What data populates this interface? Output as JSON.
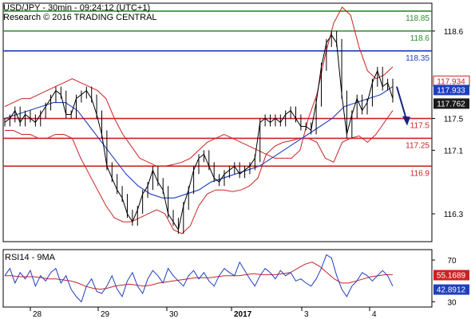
{
  "chart_data": {
    "type": "line",
    "title": "USD/JPY - 30min - 09:24:12 (UTC+1)",
    "subtitle": "Research © 2016 TRADING CENTRAL",
    "x_ticks": [
      "28",
      "29",
      "30",
      "2017",
      "3",
      "4"
    ],
    "y_ticks": [
      116.3,
      117.1,
      117.5,
      118.6
    ],
    "ylim": [
      115.95,
      118.95
    ],
    "price_line": [
      117.45,
      117.5,
      117.6,
      117.45,
      117.55,
      117.5,
      117.45,
      117.55,
      117.65,
      117.75,
      117.85,
      117.8,
      117.55,
      117.55,
      117.75,
      117.8,
      117.85,
      117.75,
      117.55,
      117.3,
      116.9,
      116.75,
      116.6,
      116.5,
      116.3,
      116.2,
      116.35,
      116.55,
      116.65,
      116.85,
      116.7,
      116.6,
      116.3,
      116.2,
      116.1,
      116.4,
      116.6,
      116.85,
      117.0,
      117.05,
      116.9,
      116.75,
      116.7,
      116.8,
      116.85,
      116.9,
      116.8,
      116.85,
      116.9,
      117.0,
      117.45,
      117.5,
      117.45,
      117.5,
      117.45,
      117.55,
      117.6,
      117.5,
      117.4,
      117.4,
      117.35,
      117.7,
      118.15,
      118.45,
      118.55,
      118.45,
      117.8,
      117.3,
      117.55,
      117.75,
      117.6,
      117.7,
      117.95,
      118.1,
      117.9,
      117.95,
      117.75
    ],
    "upper_band": [
      117.65,
      117.7,
      117.75,
      117.75,
      117.8,
      117.85,
      117.9,
      117.95,
      118.0,
      117.95,
      117.9,
      117.85,
      117.75,
      117.5,
      117.3,
      117.15,
      117.0,
      116.95,
      116.9,
      116.9,
      116.92,
      116.95,
      117.0,
      117.1,
      117.2,
      117.25,
      117.3,
      117.25,
      117.2,
      117.15,
      117.1,
      117.05,
      117.0,
      117.0,
      117.0,
      117.1,
      117.5,
      117.8,
      118.3,
      118.7,
      118.9,
      118.8,
      118.4,
      118.1,
      118.0,
      118.05,
      118.15
    ],
    "lower_band": [
      117.35,
      117.35,
      117.3,
      117.3,
      117.25,
      117.25,
      117.3,
      117.3,
      117.25,
      117.0,
      116.8,
      116.6,
      116.4,
      116.25,
      116.2,
      116.2,
      116.25,
      116.3,
      116.35,
      116.3,
      116.1,
      116.05,
      116.15,
      116.4,
      116.55,
      116.6,
      116.6,
      116.58,
      116.6,
      116.65,
      116.75,
      117.05,
      117.15,
      117.2,
      117.22,
      117.25,
      117.25,
      117.2,
      117.0,
      116.95,
      117.2,
      117.25,
      117.28,
      117.2,
      117.3,
      117.45,
      117.6
    ],
    "moving_average": [
      117.5,
      117.55,
      117.6,
      117.65,
      117.7,
      117.7,
      117.6,
      117.4,
      117.2,
      117.0,
      116.8,
      116.65,
      116.55,
      116.5,
      116.5,
      116.55,
      116.6,
      116.7,
      116.75,
      116.8,
      116.85,
      116.9,
      117.0,
      117.1,
      117.2,
      117.3,
      117.4,
      117.5,
      117.65,
      117.7,
      117.75,
      117.8,
      117.9
    ],
    "forecast_arrow": {
      "from": 117.9,
      "to": 117.45
    },
    "levels": [
      {
        "value": 118.85,
        "label": "118.85",
        "color": "#2e8b2e"
      },
      {
        "value": 118.6,
        "label": "118.6",
        "color": "#2e8b2e"
      },
      {
        "value": 118.35,
        "label": "118.35",
        "color": "#1f3fbf"
      },
      {
        "value": 117.5,
        "label": "117.5",
        "color": "#cc2222"
      },
      {
        "value": 117.25,
        "label": "117.25",
        "color": "#cc2222"
      },
      {
        "value": 116.9,
        "label": "116.9",
        "color": "#cc2222"
      }
    ],
    "price_badges": [
      {
        "value": 117.934,
        "label": "117.934",
        "color": "#cc2222"
      },
      {
        "value": 117.933,
        "label": "117.933",
        "color": "#1f3fbf"
      },
      {
        "value": 117.762,
        "label": "117.762",
        "color": "#1a1a1a"
      }
    ],
    "rsi": {
      "title": "RSI14 - 9MA",
      "ylim": [
        25,
        80
      ],
      "y_ticks": [
        30,
        70
      ],
      "rsi_line": [
        55,
        62,
        48,
        58,
        52,
        60,
        45,
        55,
        50,
        58,
        62,
        48,
        55,
        42,
        35,
        30,
        45,
        52,
        40,
        38,
        45,
        55,
        42,
        35,
        50,
        58,
        45,
        38,
        52,
        60,
        55,
        48,
        62,
        55,
        50,
        45,
        55,
        60,
        52,
        58,
        50,
        45,
        55,
        62,
        58,
        55,
        68,
        60,
        52,
        45,
        55,
        62,
        58,
        52,
        60,
        55,
        58,
        50,
        52,
        48,
        45,
        52,
        62,
        75,
        72,
        55,
        42,
        35,
        45,
        50,
        58,
        55,
        50,
        55,
        60,
        55,
        45
      ],
      "ma_line": [
        55,
        55,
        54,
        54,
        54,
        53,
        52,
        52,
        51,
        50,
        48,
        45,
        43,
        42,
        43,
        45,
        46,
        47,
        46,
        45,
        46,
        48,
        49,
        50,
        51,
        52,
        53,
        53,
        53,
        54,
        55,
        55,
        55,
        56,
        57,
        56,
        56,
        56,
        57,
        58,
        62,
        66,
        68,
        64,
        58,
        52,
        48,
        48,
        50,
        52,
        54,
        55,
        56,
        56
      ],
      "badges": [
        {
          "value": 55.1689,
          "label": "55.1689",
          "color": "#cc2222"
        },
        {
          "value": 42.8912,
          "label": "42.8912",
          "color": "#1f3fbf"
        }
      ]
    }
  }
}
